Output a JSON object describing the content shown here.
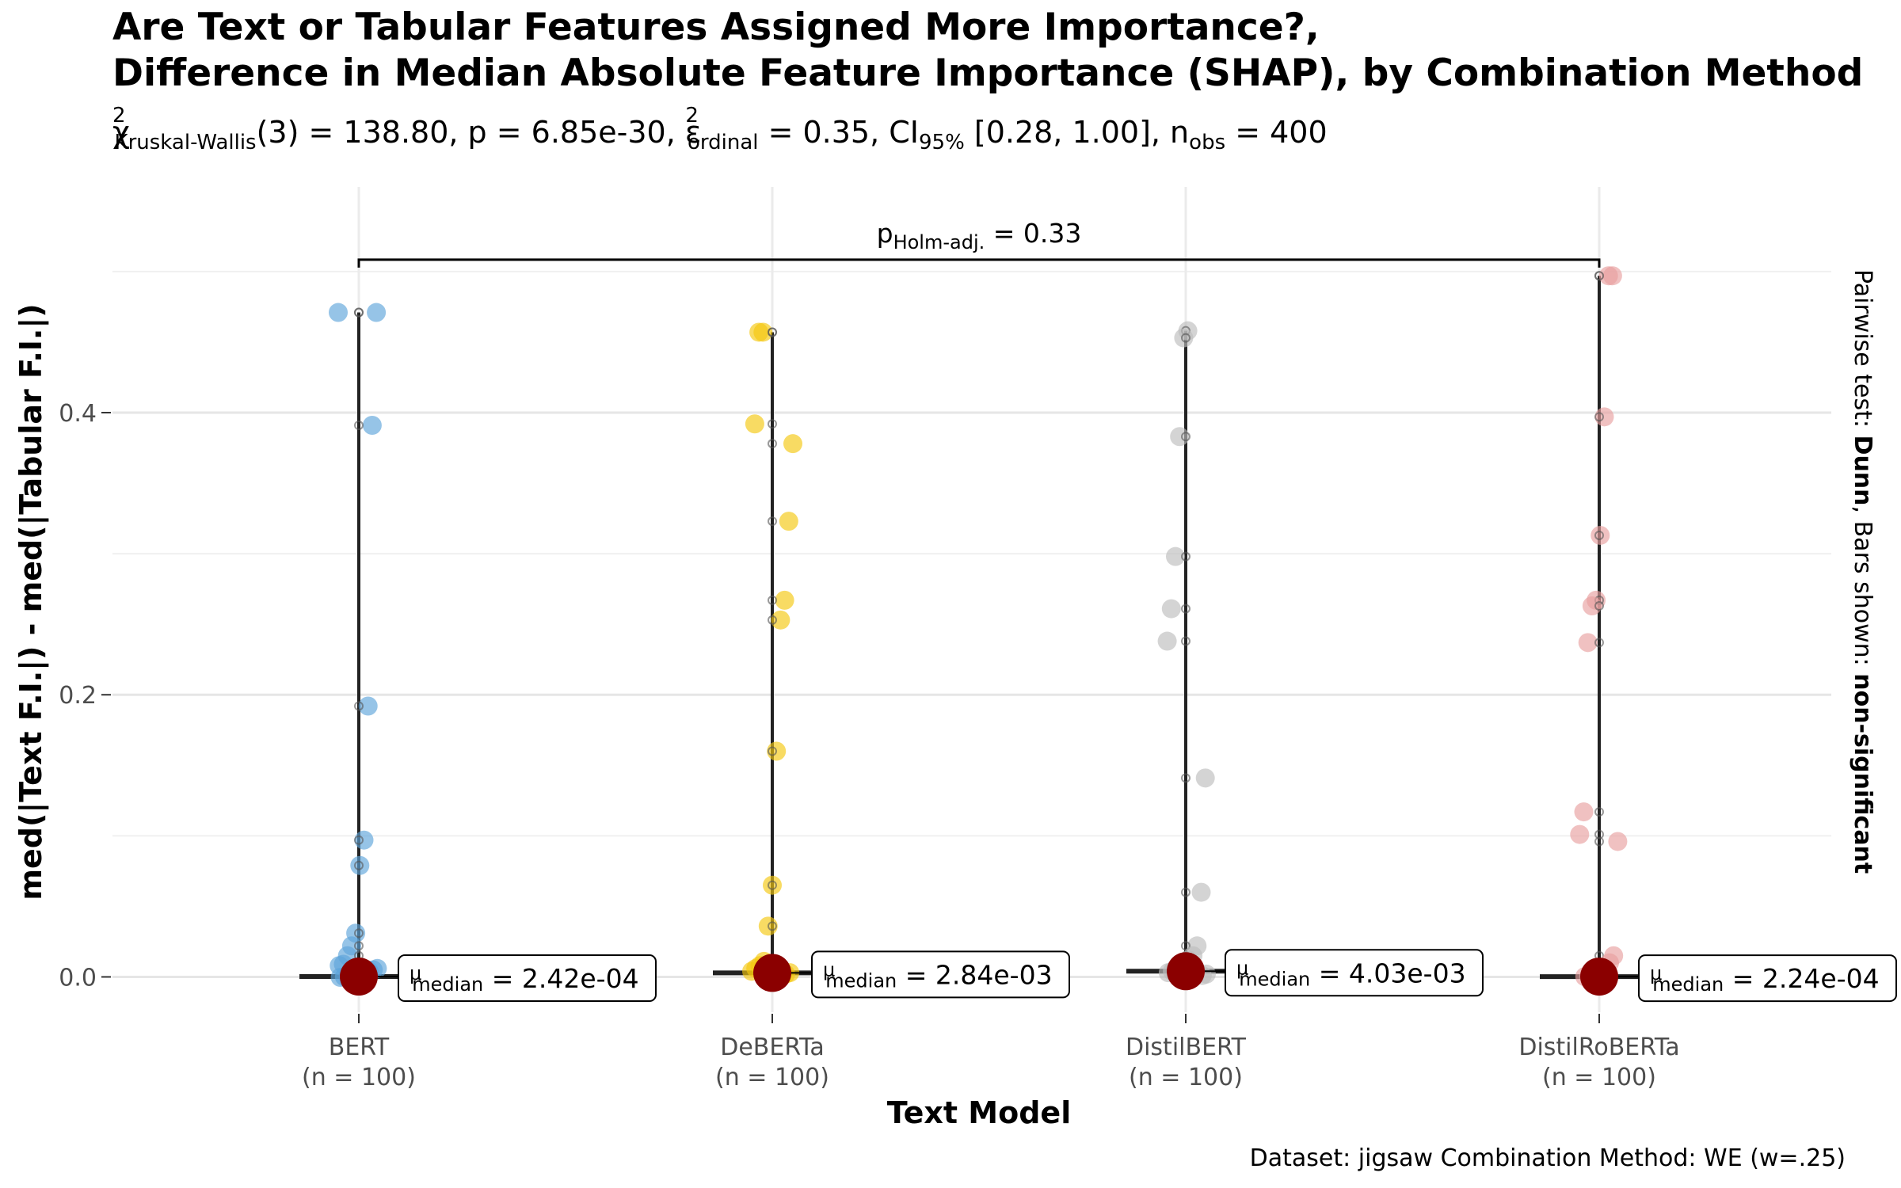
{
  "chart_data": {
    "type": "scatter",
    "title_line1": "Are Text or Tabular Features Assigned More Importance?,",
    "title_line2": "Difference in Median Absolute Feature Importance (SHAP), by Combination Method",
    "subtitle": {
      "chi_label": "χ",
      "chi_sup": "2",
      "chi_sub": "Kruskal-Wallis",
      "stat_text": "(3) = 138.80, p = 6.85e-30, ",
      "eps_label": "ε",
      "eps_sup": "2",
      "eps_sub": "ordinal",
      "eps_text": " = 0.35, CI",
      "ci_sub": "95%",
      "ci_text": " [0.28, 1.00], n",
      "n_sub": "obs",
      "n_text": " = 400"
    },
    "xlabel": "Text Model",
    "ylabel": "med(|Text F.I.|) - med(|Tabular F.I.|)",
    "ylim": [
      -0.025,
      0.56
    ],
    "yticks": [
      0.0,
      0.2,
      0.4
    ],
    "ytick_labels": [
      "0.0",
      "0.2",
      "0.4"
    ],
    "grid": true,
    "caption": "Dataset:  jigsaw Combination Method:  WE (w=.25)",
    "side_label_prefix": "Pairwise test: ",
    "side_label_test": "Dunn",
    "side_label_mid": ", Bars shown: ",
    "side_label_bars": "non-significant",
    "comparison": {
      "from": 0,
      "to": 3,
      "y": 0.532,
      "p_label": "p",
      "p_sub": "Holm-adj.",
      "p_text": " = 0.33"
    },
    "median_color": "#8B0000",
    "groups": [
      {
        "name": "BERT",
        "n_label": "(n = 100)",
        "color": "#5DA5DA",
        "median": 0.000242,
        "max": 0.471,
        "median_label": "2.42e-04",
        "points": [
          0.471,
          0.471,
          0.391,
          0.192,
          0.097,
          0.079,
          0.031,
          0.022,
          0.015,
          0.009,
          0.008,
          0.006,
          0.005,
          0.004,
          0.003,
          0.002,
          0.001,
          0.0005,
          0.0002,
          0.0001,
          -0.0003
        ]
      },
      {
        "name": "DeBERTa",
        "n_label": "(n = 100)",
        "color": "#F5C710",
        "median": 0.00284,
        "max": 0.457,
        "median_label": "2.84e-03",
        "points": [
          0.457,
          0.457,
          0.392,
          0.378,
          0.323,
          0.267,
          0.253,
          0.16,
          0.065,
          0.036,
          0.011,
          0.008,
          0.006,
          0.004,
          0.003,
          0.002,
          0.001,
          0.0005
        ]
      },
      {
        "name": "DistilBERT",
        "n_label": "(n = 100)",
        "color": "#BDBDBD",
        "median": 0.00403,
        "max": 0.458,
        "median_label": "4.03e-03",
        "points": [
          0.458,
          0.453,
          0.383,
          0.298,
          0.261,
          0.238,
          0.141,
          0.06,
          0.022,
          0.015,
          0.012,
          0.008,
          0.006,
          0.005,
          0.004,
          0.003,
          0.002,
          0.001
        ]
      },
      {
        "name": "DistilRoBERTa",
        "n_label": "(n = 100)",
        "color": "#E8A0A0",
        "median": 0.000224,
        "max": 0.497,
        "median_label": "2.24e-04",
        "points": [
          0.497,
          0.497,
          0.397,
          0.313,
          0.267,
          0.263,
          0.237,
          0.117,
          0.101,
          0.096,
          0.015,
          0.01,
          0.006,
          0.004,
          0.002,
          0.001,
          0.0005,
          0.0002
        ]
      }
    ]
  }
}
